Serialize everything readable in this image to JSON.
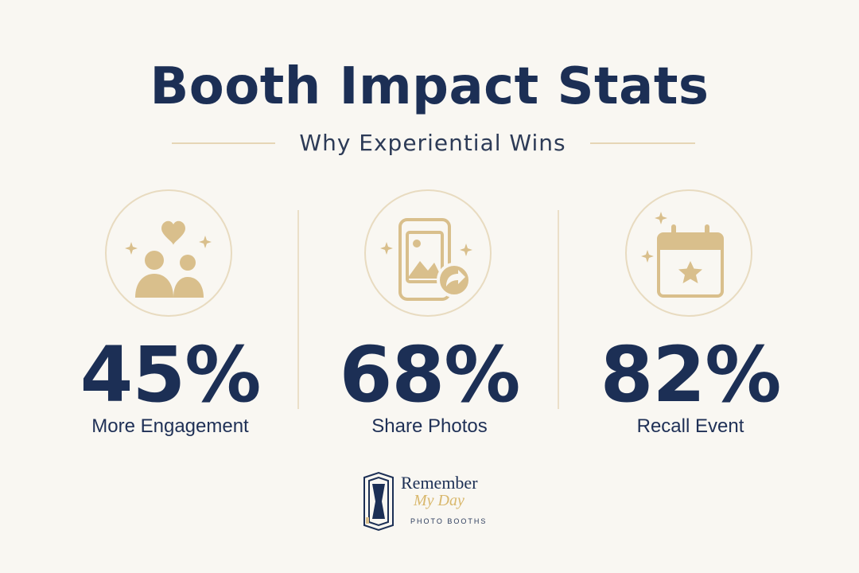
{
  "header": {
    "title": "Booth Impact Stats",
    "subtitle": "Why Experiential Wins"
  },
  "stats": [
    {
      "value": "45%",
      "label": "More Engagement",
      "icon": "people-heart-icon"
    },
    {
      "value": "68%",
      "label": "Share Photos",
      "icon": "phone-share-icon"
    },
    {
      "value": "82%",
      "label": "Recall Event",
      "icon": "calendar-star-icon"
    }
  ],
  "logo": {
    "line1": "Remember",
    "line2": "My Day",
    "line3": "PHOTO BOOTHS",
    "icon": "photo-booth-icon"
  },
  "colors": {
    "background": "#f9f7f2",
    "navy": "#1c2f55",
    "gold": "#d9bf8c",
    "rule": "#e6d6b6"
  }
}
